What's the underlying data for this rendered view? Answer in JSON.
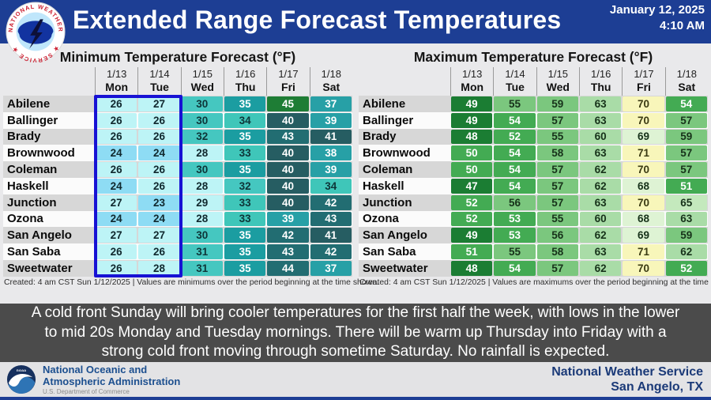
{
  "header": {
    "title": "Extended Range Forecast Temperatures",
    "date_line1": "January 12, 2025",
    "date_line2": "4:10 AM",
    "logo": "nws-logo"
  },
  "chart_data": [
    {
      "type": "heatmap",
      "title": "Minimum Temperature Forecast (°F)",
      "columns": [
        {
          "date": "1/13",
          "day": "Mon"
        },
        {
          "date": "1/14",
          "day": "Tue"
        },
        {
          "date": "1/15",
          "day": "Wed"
        },
        {
          "date": "1/16",
          "day": "Thu"
        },
        {
          "date": "1/17",
          "day": "Fri"
        },
        {
          "date": "1/18",
          "day": "Sat"
        }
      ],
      "rows": [
        "Abilene",
        "Ballinger",
        "Brady",
        "Brownwood",
        "Coleman",
        "Haskell",
        "Junction",
        "Ozona",
        "San Angelo",
        "San Saba",
        "Sweetwater"
      ],
      "values": [
        [
          26,
          27,
          30,
          35,
          45,
          37
        ],
        [
          26,
          26,
          30,
          34,
          40,
          39
        ],
        [
          26,
          26,
          32,
          35,
          43,
          41
        ],
        [
          24,
          24,
          28,
          33,
          40,
          38
        ],
        [
          26,
          26,
          30,
          35,
          40,
          39
        ],
        [
          24,
          26,
          28,
          32,
          40,
          34
        ],
        [
          27,
          23,
          29,
          33,
          40,
          42
        ],
        [
          24,
          24,
          28,
          33,
          39,
          43
        ],
        [
          27,
          27,
          30,
          35,
          42,
          41
        ],
        [
          26,
          26,
          31,
          35,
          43,
          42
        ],
        [
          26,
          28,
          31,
          35,
          44,
          37
        ]
      ],
      "caption": "Created: 4 am CST Sun 1/12/2025  |  Values are minimums over the period beginning at the time shown.",
      "highlight_note": "Mon and Tue columns outlined with blue box"
    },
    {
      "type": "heatmap",
      "title": "Maximum Temperature Forecast (°F)",
      "columns": [
        {
          "date": "1/13",
          "day": "Mon"
        },
        {
          "date": "1/14",
          "day": "Tue"
        },
        {
          "date": "1/15",
          "day": "Wed"
        },
        {
          "date": "1/16",
          "day": "Thu"
        },
        {
          "date": "1/17",
          "day": "Fri"
        },
        {
          "date": "1/18",
          "day": "Sat"
        }
      ],
      "rows": [
        "Abilene",
        "Ballinger",
        "Brady",
        "Brownwood",
        "Coleman",
        "Haskell",
        "Junction",
        "Ozona",
        "San Angelo",
        "San Saba",
        "Sweetwater"
      ],
      "values": [
        [
          49,
          55,
          59,
          63,
          70,
          54
        ],
        [
          49,
          54,
          57,
          63,
          70,
          57
        ],
        [
          48,
          52,
          55,
          60,
          69,
          59
        ],
        [
          50,
          54,
          58,
          63,
          71,
          57
        ],
        [
          50,
          54,
          57,
          62,
          70,
          57
        ],
        [
          47,
          54,
          57,
          62,
          68,
          51
        ],
        [
          52,
          56,
          57,
          63,
          70,
          65
        ],
        [
          52,
          53,
          55,
          60,
          68,
          63
        ],
        [
          49,
          53,
          56,
          62,
          69,
          59
        ],
        [
          51,
          55,
          58,
          63,
          71,
          62
        ],
        [
          48,
          54,
          57,
          62,
          70,
          52
        ]
      ],
      "caption": "Created: 4 am CST Sun 1/12/2025  |  Values are maximums over the period beginning at the time shown."
    }
  ],
  "colors": {
    "header_blue": "#1d3e94",
    "highlight_box_blue": "#1712d4",
    "message_bg": "#4b4b4b",
    "min_scale": [
      {
        "max": 25,
        "bg": "#8edcf4",
        "fg": "#10282e"
      },
      {
        "max": 29,
        "bg": "#bdf4f6",
        "fg": "#10282e"
      },
      {
        "max": 32,
        "bg": "#45c7c0",
        "fg": "#0e3538"
      },
      {
        "max": 34,
        "bg": "#3fc6b9",
        "fg": "#0e3538"
      },
      {
        "max": 36,
        "bg": "#1b9da1",
        "fg": "#ffffff"
      },
      {
        "max": 39,
        "bg": "#27a0a6",
        "fg": "#ffffff"
      },
      {
        "max": 41,
        "bg": "#265d62",
        "fg": "#ffffff"
      },
      {
        "max": 44,
        "bg": "#226d72",
        "fg": "#ffffff"
      },
      {
        "max": 99,
        "bg": "#1e7d35",
        "fg": "#ffffff"
      }
    ],
    "max_scale": [
      {
        "max": 49,
        "bg": "#1b7d33",
        "fg": "#ffffff"
      },
      {
        "max": 54,
        "bg": "#43ab53",
        "fg": "#ffffff"
      },
      {
        "max": 59,
        "bg": "#7bc77e",
        "fg": "#17321a"
      },
      {
        "max": 63,
        "bg": "#a9dca7",
        "fg": "#17321a"
      },
      {
        "max": 66,
        "bg": "#c4e9bd",
        "fg": "#17321a"
      },
      {
        "max": 69,
        "bg": "#def3d4",
        "fg": "#17321a"
      },
      {
        "max": 99,
        "bg": "#f8f6ba",
        "fg": "#3a3a12"
      }
    ]
  },
  "message": "A cold front Sunday will bring cooler temperatures for the first half the week, with lows in the lower to mid 20s Monday and Tuesday mornings. There will be warm up Thursday into Friday with a strong cold front moving through sometime Saturday. No rainfall is expected.",
  "footer": {
    "noaa_line1": "National Oceanic and",
    "noaa_line2": "Atmospheric Administration",
    "noaa_line3": "U.S. Department of Commerce",
    "right_line1": "National Weather Service",
    "right_line2": "San Angelo, TX"
  }
}
